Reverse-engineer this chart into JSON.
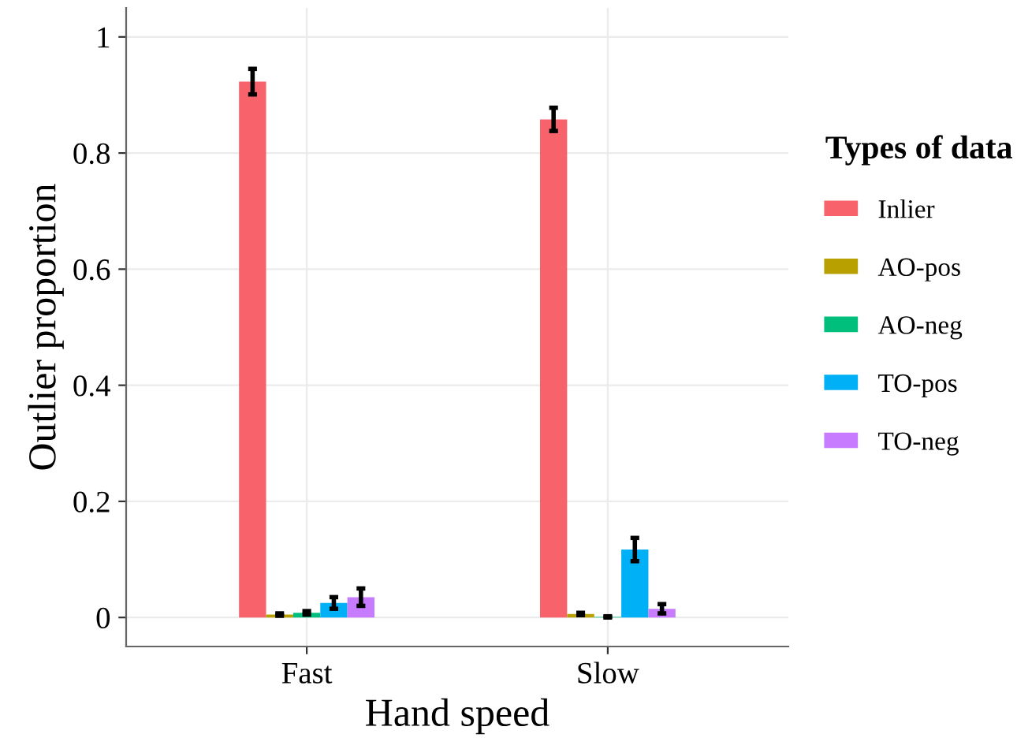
{
  "chart_data": {
    "type": "bar",
    "xlabel": "Hand speed",
    "ylabel": "Outlier proportion",
    "legend_title": "Types of data",
    "categories": [
      "Fast",
      "Slow"
    ],
    "series": [
      {
        "name": "Inlier",
        "color": "#f8626a",
        "values": [
          0.923,
          0.858
        ],
        "errors": [
          0.022,
          0.02
        ]
      },
      {
        "name": "AO-pos",
        "color": "#b7a000",
        "values": [
          0.005,
          0.006
        ],
        "errors": [
          0.002,
          0.002
        ]
      },
      {
        "name": "AO-neg",
        "color": "#00bf7d",
        "values": [
          0.008,
          0.001
        ],
        "errors": [
          0.003,
          0.001
        ]
      },
      {
        "name": "TO-pos",
        "color": "#00b0f6",
        "values": [
          0.025,
          0.117
        ],
        "errors": [
          0.01,
          0.02
        ]
      },
      {
        "name": "TO-neg",
        "color": "#c77cff",
        "values": [
          0.035,
          0.015
        ],
        "errors": [
          0.015,
          0.008
        ]
      }
    ],
    "ylim": [
      -0.05,
      1.05
    ],
    "yticks": [
      0,
      0.2,
      0.4,
      0.6,
      0.8,
      1
    ],
    "grid": true,
    "legend": "right"
  }
}
